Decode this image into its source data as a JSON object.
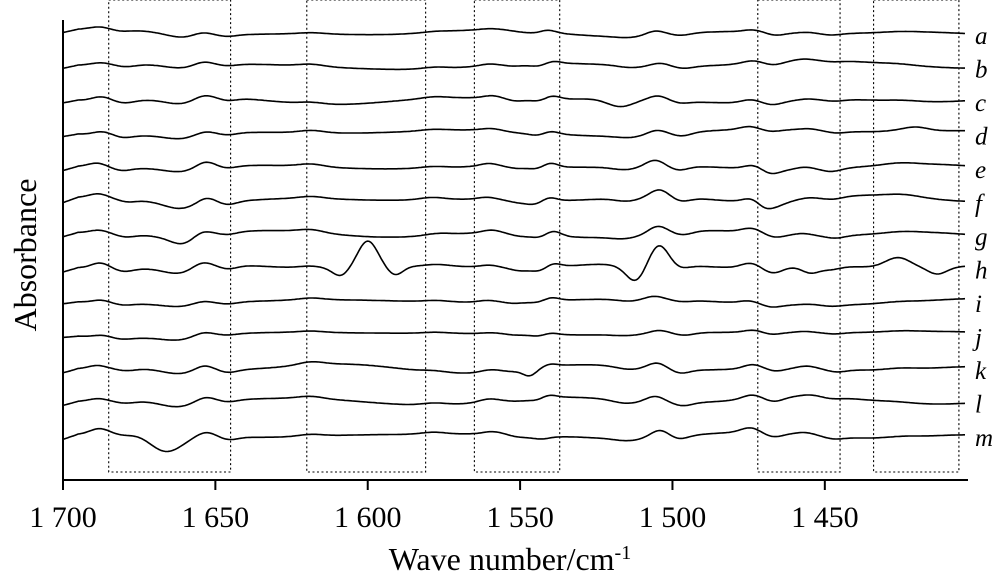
{
  "chart_data": {
    "type": "line",
    "xlabel": "Wave number/cm",
    "xlabel_superscript": "-1",
    "ylabel": "Absorbance",
    "x_reversed": true,
    "xlim": [
      1700,
      1404
    ],
    "xticks": [
      {
        "value": 1700,
        "label": "1 700"
      },
      {
        "value": 1650,
        "label": "1 650"
      },
      {
        "value": 1600,
        "label": "1 600"
      },
      {
        "value": 1550,
        "label": "1 550"
      },
      {
        "value": 1500,
        "label": "1 500"
      },
      {
        "value": 1450,
        "label": "1 450"
      }
    ],
    "highlighted_ranges": [
      [
        1685,
        1645
      ],
      [
        1620,
        1581
      ],
      [
        1565,
        1537
      ],
      [
        1472,
        1445
      ],
      [
        1434,
        1406
      ]
    ],
    "common_features": [
      {
        "x": 1688,
        "a": 0.55,
        "w": 3
      },
      {
        "x": 1680,
        "a": -0.35,
        "w": 3
      },
      {
        "x": 1662,
        "a": -0.75,
        "w": 5
      },
      {
        "x": 1654,
        "a": 0.6,
        "w": 3
      },
      {
        "x": 1646,
        "a": -0.35,
        "w": 3
      },
      {
        "x": 1618,
        "a": 0.35,
        "w": 4
      },
      {
        "x": 1578,
        "a": 0.25,
        "w": 4
      },
      {
        "x": 1560,
        "a": 0.35,
        "w": 3
      },
      {
        "x": 1551,
        "a": -0.3,
        "w": 3
      },
      {
        "x": 1544,
        "a": -0.45,
        "w": 3
      },
      {
        "x": 1540,
        "a": 0.55,
        "w": 2.5
      },
      {
        "x": 1515,
        "a": -0.4,
        "w": 4
      },
      {
        "x": 1505,
        "a": 0.8,
        "w": 3
      },
      {
        "x": 1497,
        "a": -0.45,
        "w": 3
      },
      {
        "x": 1474,
        "a": 0.5,
        "w": 3
      },
      {
        "x": 1467,
        "a": -0.55,
        "w": 3
      },
      {
        "x": 1456,
        "a": 0.3,
        "w": 3
      },
      {
        "x": 1447,
        "a": -0.3,
        "w": 3
      },
      {
        "x": 1425,
        "a": 0.2,
        "w": 5
      }
    ],
    "series": [
      {
        "name": "a",
        "scale": 0.45,
        "extra": []
      },
      {
        "name": "b",
        "scale": 0.55,
        "extra": []
      },
      {
        "name": "c",
        "scale": 0.65,
        "extra": [
          {
            "x": 1518,
            "a": -0.6,
            "w": 4
          }
        ]
      },
      {
        "name": "d",
        "scale": 0.6,
        "extra": [
          {
            "x": 1420,
            "a": 0.4,
            "w": 4
          }
        ]
      },
      {
        "name": "e",
        "scale": 0.8,
        "extra": []
      },
      {
        "name": "f",
        "scale": 0.85,
        "extra": [
          {
            "x": 1470,
            "a": -0.6,
            "w": 2.5
          }
        ]
      },
      {
        "name": "g",
        "scale": 0.8,
        "extra": [
          {
            "x": 1660,
            "a": -0.6,
            "w": 4
          }
        ]
      },
      {
        "name": "h",
        "scale": 0.9,
        "extra": [
          {
            "x": 1600,
            "a": 3.0,
            "w": 3.2
          },
          {
            "x": 1609,
            "a": -0.8,
            "w": 2.5
          },
          {
            "x": 1591,
            "a": -0.9,
            "w": 2.5
          },
          {
            "x": 1512,
            "a": -1.7,
            "w": 3
          },
          {
            "x": 1504,
            "a": 1.6,
            "w": 3
          },
          {
            "x": 1455,
            "a": -1.0,
            "w": 3
          },
          {
            "x": 1426,
            "a": 1.0,
            "w": 4
          },
          {
            "x": 1413,
            "a": -0.7,
            "w": 3
          }
        ]
      },
      {
        "name": "i",
        "scale": 0.5,
        "extra": []
      },
      {
        "name": "j",
        "scale": 0.45,
        "extra": []
      },
      {
        "name": "k",
        "scale": 0.75,
        "extra": [
          {
            "x": 1547,
            "a": -0.6,
            "w": 2
          }
        ]
      },
      {
        "name": "l",
        "scale": 0.7,
        "extra": []
      },
      {
        "name": "m",
        "scale": 0.8,
        "extra": [
          {
            "x": 1667,
            "a": -1.6,
            "w": 5
          },
          {
            "x": 1540,
            "a": -0.5,
            "w": 3
          }
        ]
      }
    ]
  }
}
